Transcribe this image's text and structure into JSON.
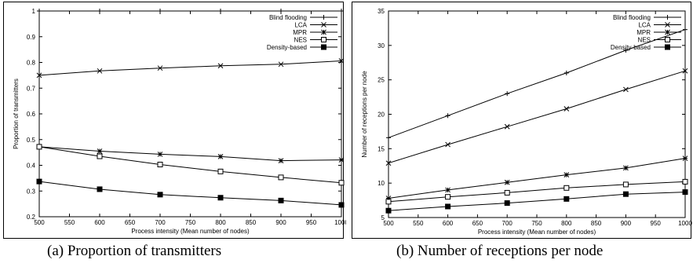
{
  "panels": [
    {
      "caption": "(a) Proportion of transmitters",
      "chart": {
        "type": "line",
        "xlabel": "Process intensity (Mean number of nodes)",
        "ylabel": "Proportion of transmitters",
        "xlim": [
          500,
          1000
        ],
        "ylim": [
          0.2,
          1
        ],
        "xticks": [
          "500",
          "550",
          "600",
          "650",
          "700",
          "750",
          "800",
          "850",
          "900",
          "950",
          "1000"
        ],
        "yticks": [
          "0.2",
          "0.3",
          "0.4",
          "0.5",
          "0.6",
          "0.7",
          "0.8",
          "0.9",
          "1"
        ],
        "legend": "top-right",
        "grid": false,
        "x": [
          500,
          600,
          700,
          800,
          900,
          1000
        ],
        "series": [
          {
            "name": "Blind flooding",
            "marker": "plus",
            "values": [
              1,
              1,
              1,
              1,
              1,
              1
            ]
          },
          {
            "name": "LCA",
            "marker": "x",
            "values": [
              0.75,
              0.767,
              0.778,
              0.787,
              0.793,
              0.806
            ]
          },
          {
            "name": "MPR",
            "marker": "star",
            "values": [
              0.472,
              0.455,
              0.443,
              0.434,
              0.418,
              0.421
            ]
          },
          {
            "name": "NES",
            "marker": "open-square",
            "values": [
              0.472,
              0.435,
              0.403,
              0.376,
              0.353,
              0.332
            ]
          },
          {
            "name": "Density-based",
            "marker": "filled-square",
            "values": [
              0.337,
              0.307,
              0.286,
              0.274,
              0.263,
              0.246
            ]
          }
        ]
      }
    },
    {
      "caption": "(b) Number of receptions per node",
      "chart": {
        "type": "line",
        "xlabel": "Process intensity (Mean number of nodes)",
        "ylabel": "Number of receptions per node",
        "xlim": [
          500,
          1000
        ],
        "ylim": [
          5,
          35
        ],
        "xticks": [
          "500",
          "550",
          "600",
          "650",
          "700",
          "750",
          "800",
          "850",
          "900",
          "950",
          "1000"
        ],
        "yticks": [
          "5",
          "10",
          "15",
          "20",
          "25",
          "30",
          "35"
        ],
        "legend": "top-right",
        "grid": false,
        "x": [
          500,
          600,
          700,
          800,
          900,
          1000
        ],
        "series": [
          {
            "name": "Blind flooding",
            "marker": "plus",
            "values": [
              16.6,
              19.8,
              23.0,
              26.0,
              29.3,
              32.3
            ]
          },
          {
            "name": "LCA",
            "marker": "x",
            "values": [
              12.9,
              15.6,
              18.2,
              20.8,
              23.6,
              26.3
            ]
          },
          {
            "name": "MPR",
            "marker": "star",
            "values": [
              7.8,
              9.0,
              10.1,
              11.2,
              12.2,
              13.6
            ]
          },
          {
            "name": "NES",
            "marker": "open-square",
            "values": [
              7.3,
              8.0,
              8.6,
              9.3,
              9.8,
              10.2
            ]
          },
          {
            "name": "Density-based",
            "marker": "filled-square",
            "values": [
              6.0,
              6.6,
              7.1,
              7.7,
              8.4,
              8.7
            ]
          }
        ]
      }
    }
  ]
}
